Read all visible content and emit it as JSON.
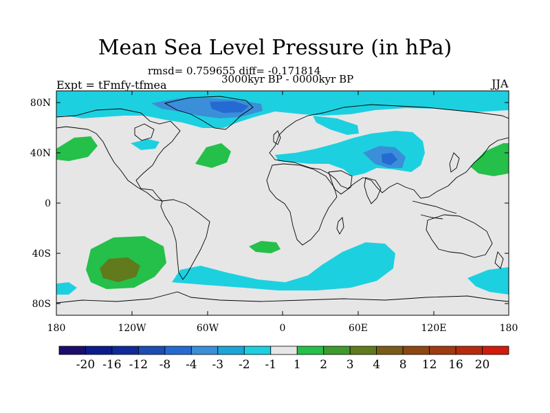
{
  "header": {
    "title": "Mean Sea Level Pressure (in hPa)",
    "stats": "rmsd= 0.759655 diff= -0.171814",
    "period": "3000kyr BP - 0000kyr BP",
    "experiment": "Expt = tFmfy-tfmea",
    "season": "JJA"
  },
  "map": {
    "lat_ticks": [
      "80N",
      "40N",
      "0",
      "40S",
      "80S"
    ],
    "lon_ticks": [
      "180",
      "120W",
      "60W",
      "0",
      "60E",
      "120E",
      "180"
    ]
  },
  "colorbar": {
    "colors": [
      "#1a0d6b",
      "#0c1c8c",
      "#102a9c",
      "#1c4cb4",
      "#246ad2",
      "#3b8ed8",
      "#1aa6d8",
      "#1dd0e0",
      "#e6e6e6",
      "#24c04a",
      "#3e9a2c",
      "#617a1c",
      "#7a5c18",
      "#8e4612",
      "#a03a10",
      "#b82a0e",
      "#d41a0c"
    ],
    "labels": [
      "-20",
      "-16",
      "-12",
      "-8",
      "-4",
      "-3",
      "-2",
      "-1",
      "1",
      "2",
      "3",
      "4",
      "8",
      "12",
      "16",
      "20"
    ]
  },
  "colors": {
    "neutral": "#e6e6e6",
    "cyan": "#1dd0e0",
    "light_blue": "#3b8ed8",
    "blue": "#246ad2",
    "green": "#24c04a",
    "dark_green": "#617a1c"
  }
}
